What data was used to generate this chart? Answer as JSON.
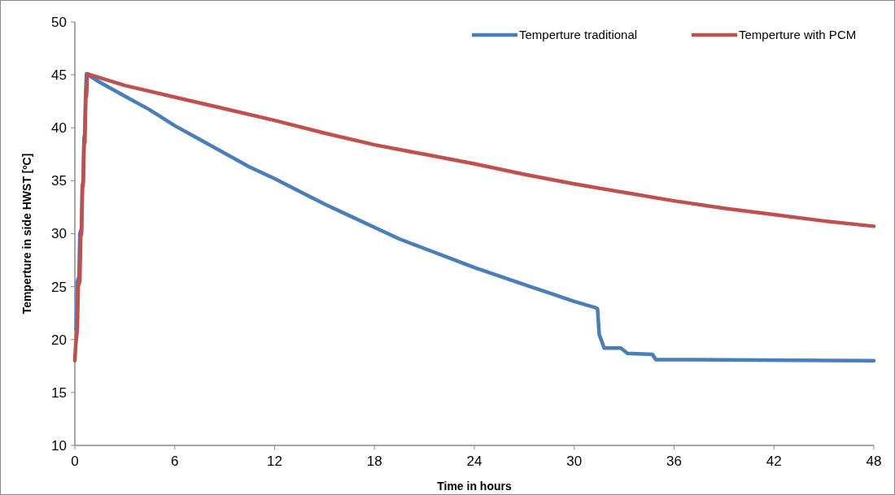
{
  "chart_data": {
    "type": "line",
    "xlabel": "Time in hours",
    "ylabel": "Temperture in side HWST [ºC]",
    "xlim": [
      0,
      48
    ],
    "xticks": [
      0,
      6,
      12,
      18,
      24,
      30,
      36,
      42,
      48
    ],
    "ylim": [
      10,
      50
    ],
    "yticks": [
      10,
      15,
      20,
      25,
      30,
      35,
      40,
      45,
      50
    ],
    "legend": "top right",
    "grid": false,
    "marker": "none",
    "line_style": "solid",
    "series": [
      {
        "name": "Temperture  traditional",
        "color": "#4a7ebb",
        "x": [
          0.05,
          0.1,
          0.15,
          0.25,
          0.3,
          0.4,
          0.45,
          0.5,
          0.55,
          0.6,
          0.65,
          0.7,
          1.5,
          3,
          4.5,
          6,
          7.5,
          9,
          10.5,
          12,
          13.5,
          15,
          16.5,
          18,
          19.5,
          21,
          22.5,
          24,
          25.5,
          27,
          28.5,
          30,
          31.3,
          31.4,
          31.5,
          31.8,
          32.8,
          33.2,
          34.7,
          34.9,
          37,
          48
        ],
        "values": [
          21,
          21,
          25.5,
          26,
          30,
          30.5,
          34.5,
          35,
          39,
          39.5,
          43.3,
          45.1,
          44.3,
          43,
          41.7,
          40.2,
          38.9,
          37.6,
          36.3,
          35.2,
          34,
          32.8,
          31.7,
          30.6,
          29.5,
          28.6,
          27.7,
          26.8,
          26,
          25.2,
          24.4,
          23.6,
          23,
          22.9,
          20.5,
          19.2,
          19.2,
          18.7,
          18.6,
          18.1,
          18.1,
          18
        ]
      },
      {
        "name": "Temperture with PCM",
        "color": "#c0504d",
        "x": [
          0,
          0.05,
          0.15,
          0.2,
          0.3,
          0.35,
          0.4,
          0.45,
          0.5,
          0.55,
          0.6,
          0.65,
          0.7,
          0.75,
          3,
          6,
          9,
          12,
          15,
          18,
          21,
          24,
          27,
          30,
          33,
          36,
          39,
          42,
          45,
          48
        ],
        "values": [
          18,
          19.5,
          21,
          25,
          25.5,
          29.7,
          30,
          34.3,
          34.6,
          38.4,
          38.6,
          42.8,
          43,
          45.1,
          44,
          42.9,
          41.8,
          40.7,
          39.5,
          38.4,
          37.5,
          36.6,
          35.6,
          34.7,
          33.9,
          33.1,
          32.4,
          31.8,
          31.2,
          30.7
        ]
      }
    ]
  }
}
